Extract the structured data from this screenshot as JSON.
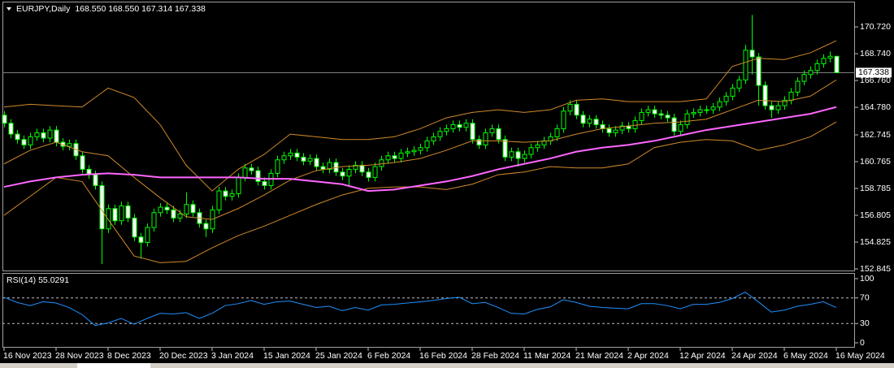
{
  "chart_data": [
    {
      "type": "candlestick",
      "title": "EURJPY,Daily",
      "info": "168.550 168.550 167.314 167.338",
      "categories": [
        "16 Nov 2023",
        null,
        null,
        null,
        null,
        null,
        null,
        null,
        "28 Nov 2023",
        null,
        null,
        null,
        null,
        null,
        null,
        null,
        "8 Dec 2023",
        null,
        null,
        null,
        null,
        null,
        null,
        null,
        "20 Dec 2023",
        null,
        null,
        null,
        null,
        null,
        null,
        null,
        "3 Jan 2024",
        null,
        null,
        null,
        null,
        null,
        null,
        null,
        "15 Jan 2024",
        null,
        null,
        null,
        null,
        null,
        null,
        null,
        "25 Jan 2024",
        null,
        null,
        null,
        null,
        null,
        null,
        null,
        "6 Feb 2024",
        null,
        null,
        null,
        null,
        null,
        null,
        null,
        "16 Feb 2024",
        null,
        null,
        null,
        null,
        null,
        null,
        null,
        "28 Feb 2024",
        null,
        null,
        null,
        null,
        null,
        null,
        null,
        "11 Mar 2024",
        null,
        null,
        null,
        null,
        null,
        null,
        null,
        "21 Mar 2024",
        null,
        null,
        null,
        null,
        null,
        null,
        null,
        "2 Apr 2024",
        null,
        null,
        null,
        null,
        null,
        null,
        null,
        "12 Apr 2024",
        null,
        null,
        null,
        null,
        null,
        null,
        null,
        "24 Apr 2024",
        null,
        null,
        null,
        null,
        null,
        null,
        null,
        "6 May 2024",
        null,
        null,
        null,
        null,
        null,
        null,
        null,
        "16 May 2024"
      ],
      "open": [
        164.2,
        163.6,
        162.8,
        162.4,
        162.0,
        162.6,
        162.9,
        162.5,
        163.1,
        162.2,
        161.9,
        162.1,
        161.2,
        160.2,
        159.8,
        159.0,
        155.8,
        157.3,
        156.4,
        157.5,
        156.6,
        155.2,
        154.8,
        155.9,
        157.0,
        157.4,
        157.2,
        156.6,
        156.9,
        157.6,
        157.0,
        156.2,
        155.8,
        157.2,
        158.6,
        158.2,
        158.4,
        159.6,
        160.3,
        160.1,
        159.3,
        159.0,
        159.9,
        160.9,
        161.2,
        161.4,
        161.1,
        160.8,
        161.0,
        160.4,
        160.2,
        160.7,
        160.0,
        159.7,
        160.2,
        160.5,
        160.0,
        159.6,
        160.4,
        160.9,
        161.2,
        161.0,
        161.4,
        161.5,
        161.6,
        161.8,
        162.3,
        162.6,
        163.0,
        163.2,
        163.5,
        163.3,
        163.6,
        162.4,
        162.0,
        162.9,
        163.2,
        162.4,
        161.1,
        161.5,
        161.0,
        161.3,
        161.8,
        162.0,
        162.3,
        162.6,
        163.2,
        164.5,
        165.0,
        164.2,
        163.6,
        163.9,
        163.5,
        163.2,
        162.9,
        163.1,
        163.4,
        163.2,
        163.8,
        164.4,
        164.6,
        164.3,
        164.2,
        164.0,
        163.0,
        163.5,
        164.3,
        164.4,
        164.6,
        164.6,
        164.8,
        165.2,
        165.6,
        166.2,
        166.8,
        169.0,
        168.5,
        166.4,
        164.9,
        164.6,
        164.9,
        165.3,
        165.9,
        166.7,
        167.2,
        167.5,
        168.0,
        168.4,
        168.55
      ],
      "high": [
        164.5,
        163.9,
        163.1,
        162.7,
        162.9,
        163.2,
        163.2,
        163.4,
        163.4,
        162.5,
        162.4,
        162.4,
        161.5,
        160.5,
        160.1,
        159.3,
        157.6,
        157.6,
        157.8,
        157.8,
        156.9,
        155.5,
        156.2,
        157.3,
        157.7,
        157.7,
        157.5,
        157.2,
        158.5,
        157.9,
        157.3,
        156.5,
        157.5,
        158.9,
        158.9,
        158.7,
        159.9,
        160.6,
        160.6,
        160.4,
        159.6,
        160.2,
        161.2,
        161.5,
        161.7,
        161.7,
        161.4,
        161.3,
        161.3,
        160.7,
        161.0,
        161.0,
        160.3,
        160.5,
        160.8,
        160.8,
        160.3,
        160.7,
        161.2,
        161.5,
        161.5,
        161.7,
        161.8,
        161.9,
        162.1,
        162.6,
        162.9,
        163.3,
        163.5,
        163.8,
        163.8,
        163.9,
        163.9,
        162.7,
        163.2,
        163.5,
        163.5,
        162.7,
        161.8,
        161.8,
        161.6,
        162.1,
        162.3,
        162.6,
        162.9,
        163.5,
        164.8,
        165.3,
        165.3,
        164.5,
        164.2,
        164.2,
        163.8,
        163.5,
        163.4,
        163.7,
        163.7,
        164.1,
        164.7,
        164.9,
        164.9,
        164.6,
        164.5,
        164.3,
        163.8,
        164.6,
        164.7,
        164.9,
        164.9,
        165.1,
        165.5,
        165.9,
        166.5,
        167.1,
        169.4,
        171.6,
        168.8,
        166.7,
        165.2,
        165.2,
        165.6,
        166.2,
        167.0,
        167.5,
        167.8,
        168.3,
        168.7,
        168.9,
        168.55
      ],
      "low": [
        163.3,
        162.5,
        162.1,
        161.7,
        161.7,
        162.3,
        162.2,
        162.2,
        161.9,
        161.6,
        161.6,
        160.9,
        159.9,
        159.5,
        158.7,
        153.2,
        155.5,
        156.1,
        156.1,
        156.3,
        154.9,
        153.6,
        154.5,
        155.6,
        156.7,
        156.9,
        156.3,
        156.3,
        156.6,
        156.7,
        155.9,
        155.2,
        155.5,
        156.9,
        157.9,
        157.9,
        158.1,
        159.3,
        159.8,
        159.0,
        158.7,
        158.7,
        159.6,
        160.6,
        160.9,
        160.8,
        160.5,
        160.5,
        160.1,
        159.9,
        159.9,
        159.7,
        159.4,
        158.9,
        159.9,
        159.7,
        159.3,
        159.3,
        160.1,
        160.6,
        160.7,
        160.7,
        161.1,
        161.2,
        161.3,
        161.5,
        162.0,
        162.3,
        162.7,
        162.9,
        163.0,
        163.0,
        162.1,
        161.7,
        161.7,
        162.6,
        162.1,
        160.8,
        160.8,
        160.4,
        160.7,
        161.0,
        161.5,
        161.7,
        162.0,
        162.3,
        162.9,
        164.2,
        163.9,
        163.3,
        163.3,
        163.2,
        162.9,
        162.6,
        162.6,
        162.8,
        162.9,
        162.9,
        163.5,
        164.1,
        164.0,
        163.9,
        163.7,
        162.7,
        162.7,
        163.2,
        164.0,
        164.1,
        164.3,
        164.3,
        164.5,
        164.9,
        165.3,
        165.9,
        166.5,
        167.2,
        164.9,
        164.6,
        164.0,
        164.3,
        164.6,
        165.0,
        165.6,
        166.4,
        166.9,
        167.2,
        167.7,
        168.1,
        167.314
      ],
      "close": [
        163.6,
        162.8,
        162.4,
        162.0,
        162.6,
        162.9,
        162.5,
        163.1,
        162.2,
        161.9,
        162.1,
        161.2,
        160.2,
        159.8,
        159.0,
        155.8,
        157.3,
        156.4,
        157.5,
        156.6,
        155.2,
        154.8,
        155.9,
        157.0,
        157.4,
        157.2,
        156.6,
        156.9,
        157.6,
        157.0,
        156.2,
        155.8,
        157.2,
        158.6,
        158.2,
        158.4,
        159.6,
        160.3,
        160.1,
        159.3,
        159.0,
        159.9,
        160.9,
        161.2,
        161.4,
        161.1,
        160.8,
        161.0,
        160.4,
        160.2,
        160.7,
        160.0,
        159.7,
        160.2,
        160.5,
        160.0,
        159.6,
        160.4,
        160.9,
        161.2,
        161.0,
        161.4,
        161.5,
        161.6,
        161.8,
        162.3,
        162.6,
        163.0,
        163.2,
        163.5,
        163.3,
        163.6,
        162.4,
        162.0,
        162.9,
        163.2,
        162.4,
        161.1,
        161.5,
        161.0,
        161.3,
        161.8,
        162.0,
        162.3,
        162.6,
        163.2,
        164.5,
        165.0,
        164.2,
        163.6,
        163.9,
        163.5,
        163.2,
        162.9,
        163.1,
        163.4,
        163.2,
        163.8,
        164.4,
        164.6,
        164.3,
        164.2,
        164.0,
        163.0,
        163.5,
        164.3,
        164.4,
        164.6,
        164.6,
        164.8,
        165.2,
        165.6,
        166.2,
        166.8,
        169.0,
        168.5,
        166.4,
        164.9,
        164.6,
        164.9,
        165.3,
        165.9,
        166.7,
        167.2,
        167.5,
        168.0,
        168.4,
        168.55,
        167.338
      ],
      "outline_color": "#00ff00",
      "bull_fill": "#000000",
      "bear_fill": "#ffffff",
      "line_x": [
        0,
        4,
        8,
        12,
        16,
        20,
        24,
        28,
        32,
        36,
        40,
        44,
        48,
        52,
        56,
        60,
        64,
        68,
        72,
        76,
        80,
        84,
        88,
        92,
        96,
        100,
        104,
        108,
        112,
        116,
        120,
        124,
        128
      ],
      "lines": [
        {
          "color": "#d08a2a",
          "width": 1,
          "values": [
            164.8,
            165.0,
            164.9,
            164.8,
            166.2,
            165.5,
            163.5,
            160.5,
            158.6,
            160.2,
            161.3,
            162.8,
            162.6,
            162.4,
            162.4,
            162.6,
            163.2,
            164.0,
            164.4,
            164.6,
            164.4,
            164.6,
            165.3,
            165.4,
            165.2,
            165.2,
            165.2,
            165.4,
            167.8,
            168.4,
            168.3,
            168.8,
            169.7
          ]
        },
        {
          "color": "#d08a2a",
          "width": 1,
          "values": [
            160.6,
            161.6,
            162.2,
            161.5,
            161.2,
            159.6,
            158.1,
            156.7,
            156.5,
            157.3,
            158.3,
            159.4,
            160.1,
            160.4,
            160.5,
            160.7,
            161.0,
            161.6,
            162.3,
            162.3,
            162.2,
            162.3,
            162.8,
            163.2,
            163.4,
            163.6,
            163.7,
            163.9,
            164.6,
            165.3,
            165.2,
            165.6,
            166.8
          ]
        },
        {
          "color": "#d08a2a",
          "width": 1,
          "values": [
            156.8,
            158.2,
            159.6,
            159.3,
            156.5,
            153.8,
            153.3,
            153.4,
            154.4,
            155.3,
            156.0,
            156.8,
            157.6,
            158.3,
            158.8,
            158.9,
            158.9,
            158.7,
            159.1,
            159.8,
            160.0,
            160.4,
            160.3,
            160.3,
            160.6,
            161.8,
            162.2,
            162.4,
            162.3,
            161.6,
            162.0,
            162.6,
            163.7
          ]
        },
        {
          "color": "#ff66ff",
          "width": 2,
          "values": [
            158.9,
            159.3,
            159.6,
            159.8,
            159.9,
            159.8,
            159.6,
            159.6,
            159.6,
            159.6,
            159.5,
            159.5,
            159.3,
            159.1,
            158.6,
            158.7,
            159.0,
            159.3,
            159.7,
            160.2,
            160.6,
            161.0,
            161.5,
            161.8,
            162.0,
            162.3,
            162.7,
            163.1,
            163.4,
            163.7,
            164.0,
            164.3,
            164.8
          ]
        }
      ],
      "ylim": [
        152.665,
        172.585
      ],
      "yticks": [
        {
          "value": 170.72,
          "label": "170.720"
        },
        {
          "value": 168.74,
          "label": "168.740"
        },
        {
          "value": 166.76,
          "label": "166.760"
        },
        {
          "value": 164.78,
          "label": "164.780"
        },
        162.745,
        160.765,
        158.785,
        156.805,
        154.825,
        152.845
      ],
      "current_price": {
        "value": 167.338,
        "label": "167.338"
      }
    },
    {
      "type": "line",
      "title": "RSI(14) 55.0291",
      "color": "#1e90ff",
      "x": [
        0,
        2,
        4,
        6,
        8,
        10,
        12,
        14,
        16,
        18,
        20,
        22,
        24,
        26,
        28,
        30,
        32,
        34,
        36,
        38,
        40,
        42,
        44,
        46,
        48,
        50,
        52,
        54,
        56,
        58,
        60,
        62,
        64,
        66,
        68,
        70,
        72,
        74,
        76,
        78,
        80,
        82,
        84,
        86,
        88,
        90,
        92,
        94,
        96,
        98,
        100,
        102,
        104,
        106,
        108,
        110,
        112,
        114,
        116,
        118,
        120,
        122,
        124,
        126,
        128
      ],
      "values": [
        71,
        63,
        58,
        64,
        62,
        55,
        44,
        27,
        31,
        38,
        29,
        38,
        46,
        45,
        47,
        38,
        46,
        58,
        61,
        66,
        60,
        64,
        65,
        60,
        55,
        57,
        50,
        55,
        51,
        59,
        60,
        62,
        64,
        66,
        69,
        71,
        61,
        63,
        55,
        46,
        45,
        52,
        56,
        67,
        63,
        57,
        55,
        54,
        53,
        61,
        61,
        58,
        53,
        60,
        60,
        63,
        69,
        79,
        64,
        48,
        51,
        57,
        60,
        64,
        55.0291
      ],
      "xlim": [
        -0.25,
        130.875
      ],
      "ylim": [
        -7.6,
        107.6
      ],
      "yticks": [
        100,
        70,
        30,
        0
      ],
      "levels": [
        70,
        30
      ]
    }
  ]
}
